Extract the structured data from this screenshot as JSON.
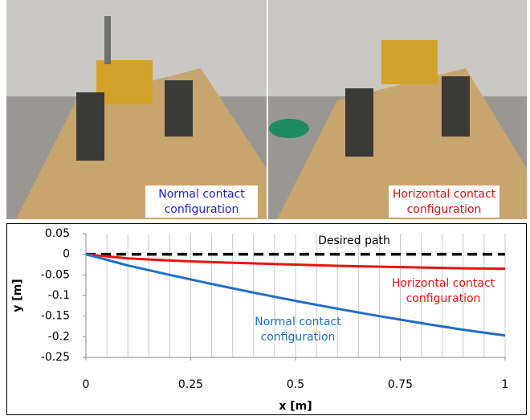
{
  "photos": [
    {
      "caption": [
        "Normal contact",
        "configuration"
      ],
      "caption_color": "#1f1fd0"
    },
    {
      "caption": [
        "Horizontal contact",
        "configuration"
      ],
      "caption_color": "#e01010"
    }
  ],
  "chart_data": {
    "type": "line",
    "x_label": "x [m]",
    "y_label": "y [m]",
    "x": [
      0,
      0.1,
      0.2,
      0.3,
      0.4,
      0.5,
      0.6,
      0.7,
      0.8,
      0.9,
      1
    ],
    "series": [
      {
        "name": [
          "Desired path"
        ],
        "color": "#000000",
        "dashed": true,
        "values": [
          0,
          0,
          0,
          0,
          0,
          0,
          0,
          0,
          0,
          0,
          0
        ]
      },
      {
        "name": [
          "Horizontal contact",
          "configuration"
        ],
        "color": "#ee1111",
        "dashed": false,
        "values": [
          0,
          -0.01,
          -0.015,
          -0.019,
          -0.022,
          -0.025,
          -0.028,
          -0.03,
          -0.032,
          -0.034,
          -0.035
        ]
      },
      {
        "name": [
          "Normal contact",
          "configuration"
        ],
        "color": "#1f6fc8",
        "dashed": false,
        "values": [
          0,
          -0.027,
          -0.05,
          -0.072,
          -0.093,
          -0.113,
          -0.132,
          -0.15,
          -0.167,
          -0.183,
          -0.197
        ]
      }
    ],
    "xlim": [
      0,
      1
    ],
    "ylim": [
      -0.25,
      0.05
    ],
    "xticks": [
      0,
      0.25,
      0.5,
      0.75,
      1
    ],
    "yticks": [
      0.05,
      0,
      -0.05,
      -0.1,
      -0.15,
      -0.2,
      -0.25
    ],
    "x_grid": [
      0.05,
      0.1,
      0.15,
      0.2,
      0.25,
      0.3,
      0.35,
      0.4,
      0.45,
      0.5,
      0.55,
      0.6,
      0.65,
      0.7,
      0.75,
      0.8,
      0.85,
      0.9,
      0.95,
      1
    ]
  }
}
